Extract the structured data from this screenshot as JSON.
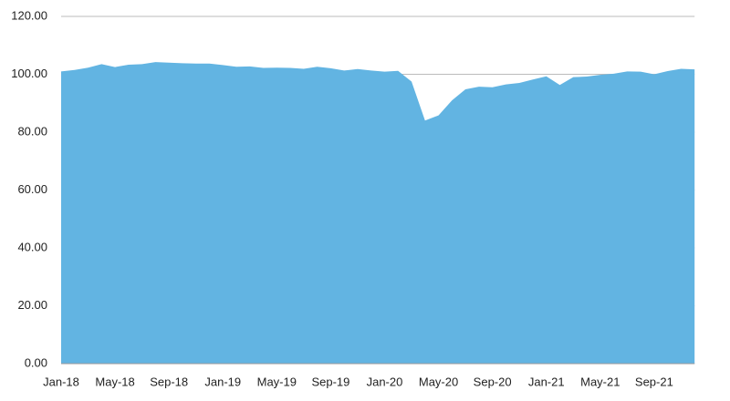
{
  "chart_data": {
    "type": "area",
    "categories": [
      "Jan-18",
      null,
      null,
      null,
      "May-18",
      null,
      null,
      null,
      "Sep-18",
      null,
      null,
      null,
      "Jan-19",
      null,
      null,
      null,
      "May-19",
      null,
      null,
      null,
      "Sep-19",
      null,
      null,
      null,
      "Jan-20",
      null,
      null,
      null,
      "May-20",
      null,
      null,
      null,
      "Sep-20",
      null,
      null,
      null,
      "Jan-21",
      null,
      null,
      null,
      "May-21",
      null,
      null,
      null,
      "Sep-21",
      null,
      null,
      null
    ],
    "values": [
      101,
      101.5,
      102.3,
      103.5,
      102.5,
      103.3,
      103.5,
      104.2,
      104,
      103.8,
      103.7,
      103.7,
      103.2,
      102.6,
      102.7,
      102.2,
      102.3,
      102.2,
      101.9,
      102.6,
      102.1,
      101.3,
      101.8,
      101.3,
      100.9,
      101.2,
      97.5,
      84,
      85.8,
      91,
      94.8,
      95.7,
      95.5,
      96.5,
      97,
      98.2,
      99.3,
      96.3,
      99,
      99.2,
      99.8,
      100.2,
      101,
      100.9,
      100,
      101.1,
      101.9,
      101.7
    ],
    "color": "#62b4e2",
    "ylim": [
      0,
      120
    ],
    "yticks": [
      {
        "value": 0,
        "label": "0.00"
      },
      {
        "value": 20,
        "label": "20.00"
      },
      {
        "value": 40,
        "label": "40.00"
      },
      {
        "value": 60,
        "label": "60.00"
      },
      {
        "value": 80,
        "label": "80.00"
      },
      {
        "value": 100,
        "label": "100.00"
      },
      {
        "value": 120,
        "label": "120.00"
      }
    ],
    "grid": true
  }
}
